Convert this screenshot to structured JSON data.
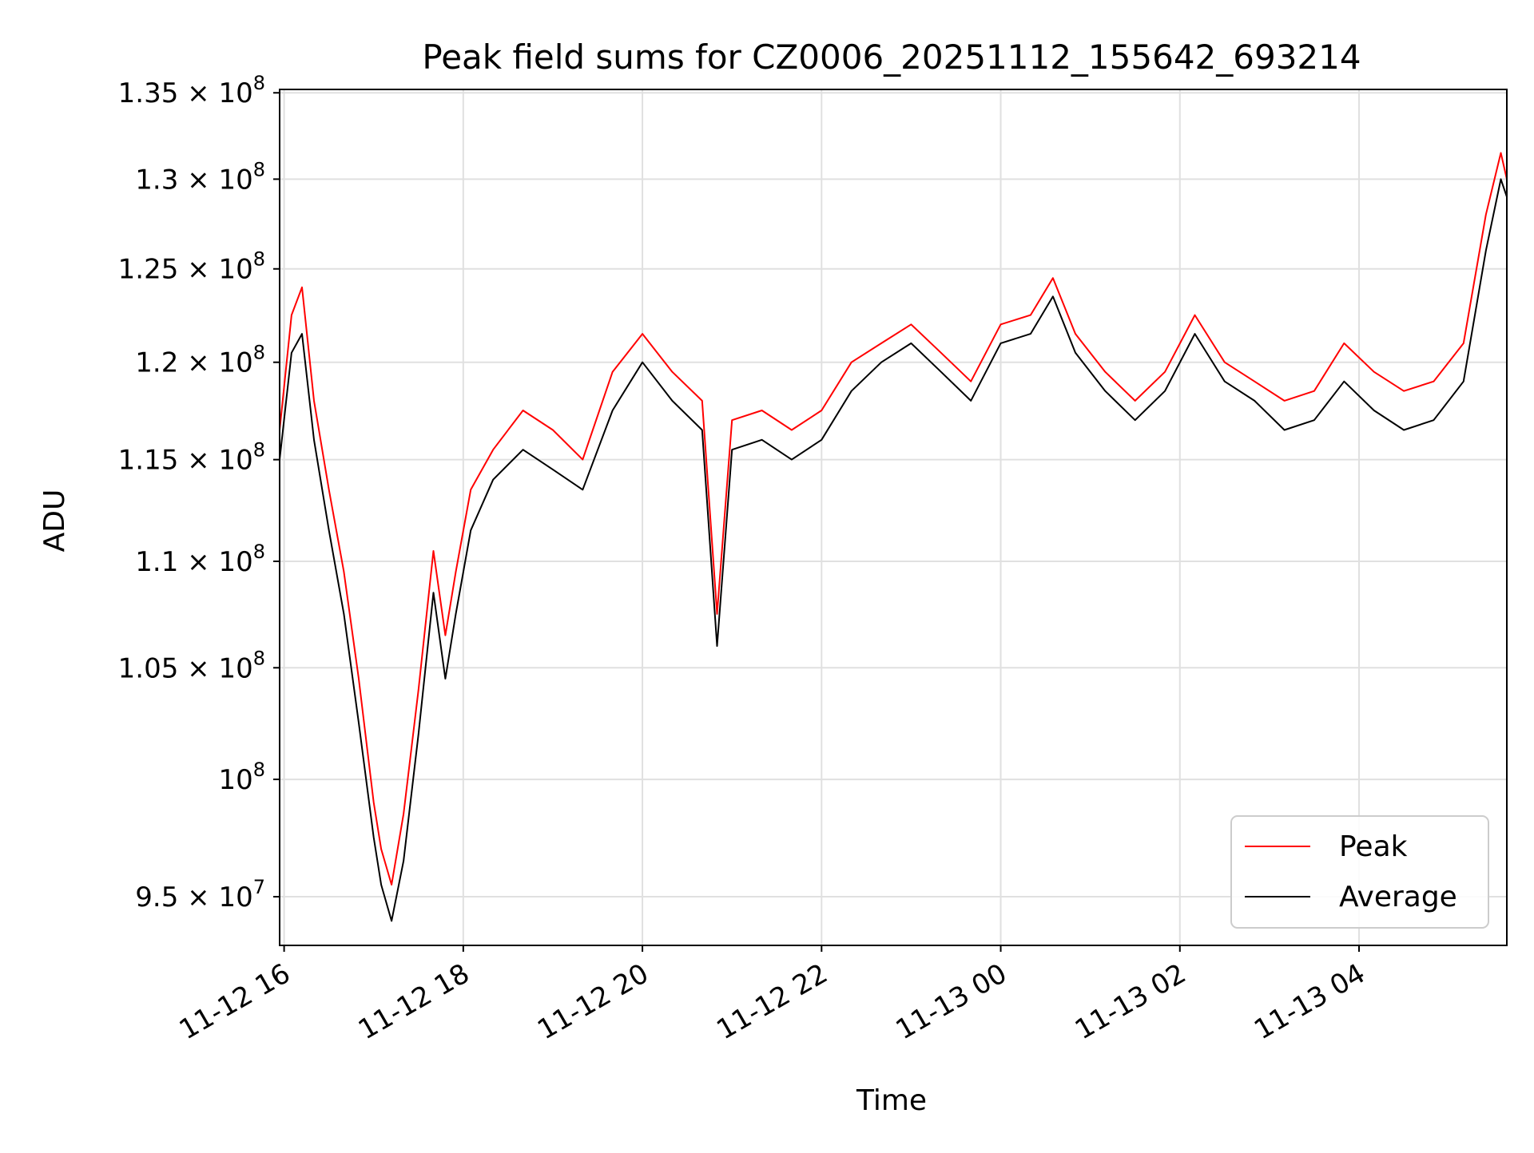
{
  "chart_data": {
    "type": "line",
    "title": "Peak field sums for CZ0006_20251112_155642_693214",
    "xlabel": "Time",
    "ylabel": "ADU",
    "yscale": "log",
    "ylim": [
      93000000,
      135200000
    ],
    "xlim": [
      "2025-11-12T15:57:00",
      "2025-11-13T05:39:00"
    ],
    "grid": true,
    "legend_position": "lower-right",
    "x_ticks": [
      {
        "t": "2025-11-12T16:00:00",
        "label": "11-12 16"
      },
      {
        "t": "2025-11-12T18:00:00",
        "label": "11-12 18"
      },
      {
        "t": "2025-11-12T20:00:00",
        "label": "11-12 20"
      },
      {
        "t": "2025-11-12T22:00:00",
        "label": "11-12 22"
      },
      {
        "t": "2025-11-13T00:00:00",
        "label": "11-13 00"
      },
      {
        "t": "2025-11-13T02:00:00",
        "label": "11-13 02"
      },
      {
        "t": "2025-11-13T04:00:00",
        "label": "11-13 04"
      }
    ],
    "y_ticks": [
      {
        "v": 95000000,
        "mant": "9.5",
        "exp": "7"
      },
      {
        "v": 100000000,
        "mant": "",
        "exp": "8"
      },
      {
        "v": 105000000,
        "mant": "1.05",
        "exp": "8"
      },
      {
        "v": 110000000,
        "mant": "1.1",
        "exp": "8"
      },
      {
        "v": 115000000,
        "mant": "1.15",
        "exp": "8"
      },
      {
        "v": 120000000,
        "mant": "1.2",
        "exp": "8"
      },
      {
        "v": 125000000,
        "mant": "1.25",
        "exp": "8"
      },
      {
        "v": 130000000,
        "mant": "1.3",
        "exp": "8"
      },
      {
        "v": 135000000,
        "mant": "1.35",
        "exp": "8"
      }
    ],
    "series": [
      {
        "name": "Peak",
        "color": "#ff0000",
        "points": [
          [
            "2025-11-12T15:57:00",
            116500000
          ],
          [
            "2025-11-12T16:05:00",
            122500000
          ],
          [
            "2025-11-12T16:12:00",
            124000000
          ],
          [
            "2025-11-12T16:20:00",
            118000000
          ],
          [
            "2025-11-12T16:30:00",
            113500000
          ],
          [
            "2025-11-12T16:40:00",
            109500000
          ],
          [
            "2025-11-12T16:50:00",
            104500000
          ],
          [
            "2025-11-12T17:00:00",
            99000000
          ],
          [
            "2025-11-12T17:05:00",
            97000000
          ],
          [
            "2025-11-12T17:12:00",
            95500000
          ],
          [
            "2025-11-12T17:20:00",
            98500000
          ],
          [
            "2025-11-12T17:30:00",
            104000000
          ],
          [
            "2025-11-12T17:40:00",
            110500000
          ],
          [
            "2025-11-12T17:48:00",
            106500000
          ],
          [
            "2025-11-12T17:55:00",
            109500000
          ],
          [
            "2025-11-12T18:05:00",
            113500000
          ],
          [
            "2025-11-12T18:20:00",
            115500000
          ],
          [
            "2025-11-12T18:40:00",
            117500000
          ],
          [
            "2025-11-12T19:00:00",
            116500000
          ],
          [
            "2025-11-12T19:20:00",
            115000000
          ],
          [
            "2025-11-12T19:40:00",
            119500000
          ],
          [
            "2025-11-12T20:00:00",
            121500000
          ],
          [
            "2025-11-12T20:20:00",
            119500000
          ],
          [
            "2025-11-12T20:40:00",
            118000000
          ],
          [
            "2025-11-12T20:50:00",
            107500000
          ],
          [
            "2025-11-12T21:00:00",
            117000000
          ],
          [
            "2025-11-12T21:20:00",
            117500000
          ],
          [
            "2025-11-12T21:40:00",
            116500000
          ],
          [
            "2025-11-12T22:00:00",
            117500000
          ],
          [
            "2025-11-12T22:20:00",
            120000000
          ],
          [
            "2025-11-12T22:40:00",
            121000000
          ],
          [
            "2025-11-12T23:00:00",
            122000000
          ],
          [
            "2025-11-12T23:20:00",
            120500000
          ],
          [
            "2025-11-12T23:40:00",
            119000000
          ],
          [
            "2025-11-13T00:00:00",
            122000000
          ],
          [
            "2025-11-13T00:20:00",
            122500000
          ],
          [
            "2025-11-13T00:35:00",
            124500000
          ],
          [
            "2025-11-13T00:50:00",
            121500000
          ],
          [
            "2025-11-13T01:10:00",
            119500000
          ],
          [
            "2025-11-13T01:30:00",
            118000000
          ],
          [
            "2025-11-13T01:50:00",
            119500000
          ],
          [
            "2025-11-13T02:10:00",
            122500000
          ],
          [
            "2025-11-13T02:30:00",
            120000000
          ],
          [
            "2025-11-13T02:50:00",
            119000000
          ],
          [
            "2025-11-13T03:10:00",
            118000000
          ],
          [
            "2025-11-13T03:30:00",
            118500000
          ],
          [
            "2025-11-13T03:50:00",
            121000000
          ],
          [
            "2025-11-13T04:10:00",
            119500000
          ],
          [
            "2025-11-13T04:30:00",
            118500000
          ],
          [
            "2025-11-13T04:50:00",
            119000000
          ],
          [
            "2025-11-13T05:10:00",
            121000000
          ],
          [
            "2025-11-13T05:25:00",
            128000000
          ],
          [
            "2025-11-13T05:35:00",
            131500000
          ],
          [
            "2025-11-13T05:39:00",
            130000000
          ]
        ]
      },
      {
        "name": "Average",
        "color": "#000000",
        "points": [
          [
            "2025-11-12T15:57:00",
            115000000
          ],
          [
            "2025-11-12T16:05:00",
            120500000
          ],
          [
            "2025-11-12T16:12:00",
            121500000
          ],
          [
            "2025-11-12T16:20:00",
            116000000
          ],
          [
            "2025-11-12T16:30:00",
            111500000
          ],
          [
            "2025-11-12T16:40:00",
            107500000
          ],
          [
            "2025-11-12T16:50:00",
            102500000
          ],
          [
            "2025-11-12T17:00:00",
            97500000
          ],
          [
            "2025-11-12T17:05:00",
            95500000
          ],
          [
            "2025-11-12T17:12:00",
            94000000
          ],
          [
            "2025-11-12T17:20:00",
            96500000
          ],
          [
            "2025-11-12T17:30:00",
            102000000
          ],
          [
            "2025-11-12T17:40:00",
            108500000
          ],
          [
            "2025-11-12T17:48:00",
            104500000
          ],
          [
            "2025-11-12T17:55:00",
            107500000
          ],
          [
            "2025-11-12T18:05:00",
            111500000
          ],
          [
            "2025-11-12T18:20:00",
            114000000
          ],
          [
            "2025-11-12T18:40:00",
            115500000
          ],
          [
            "2025-11-12T19:00:00",
            114500000
          ],
          [
            "2025-11-12T19:20:00",
            113500000
          ],
          [
            "2025-11-12T19:40:00",
            117500000
          ],
          [
            "2025-11-12T20:00:00",
            120000000
          ],
          [
            "2025-11-12T20:20:00",
            118000000
          ],
          [
            "2025-11-12T20:40:00",
            116500000
          ],
          [
            "2025-11-12T20:50:00",
            106000000
          ],
          [
            "2025-11-12T21:00:00",
            115500000
          ],
          [
            "2025-11-12T21:20:00",
            116000000
          ],
          [
            "2025-11-12T21:40:00",
            115000000
          ],
          [
            "2025-11-12T22:00:00",
            116000000
          ],
          [
            "2025-11-12T22:20:00",
            118500000
          ],
          [
            "2025-11-12T22:40:00",
            120000000
          ],
          [
            "2025-11-12T23:00:00",
            121000000
          ],
          [
            "2025-11-12T23:20:00",
            119500000
          ],
          [
            "2025-11-12T23:40:00",
            118000000
          ],
          [
            "2025-11-13T00:00:00",
            121000000
          ],
          [
            "2025-11-13T00:20:00",
            121500000
          ],
          [
            "2025-11-13T00:35:00",
            123500000
          ],
          [
            "2025-11-13T00:50:00",
            120500000
          ],
          [
            "2025-11-13T01:10:00",
            118500000
          ],
          [
            "2025-11-13T01:30:00",
            117000000
          ],
          [
            "2025-11-13T01:50:00",
            118500000
          ],
          [
            "2025-11-13T02:10:00",
            121500000
          ],
          [
            "2025-11-13T02:30:00",
            119000000
          ],
          [
            "2025-11-13T02:50:00",
            118000000
          ],
          [
            "2025-11-13T03:10:00",
            116500000
          ],
          [
            "2025-11-13T03:30:00",
            117000000
          ],
          [
            "2025-11-13T03:50:00",
            119000000
          ],
          [
            "2025-11-13T04:10:00",
            117500000
          ],
          [
            "2025-11-13T04:30:00",
            116500000
          ],
          [
            "2025-11-13T04:50:00",
            117000000
          ],
          [
            "2025-11-13T05:10:00",
            119000000
          ],
          [
            "2025-11-13T05:25:00",
            126000000
          ],
          [
            "2025-11-13T05:35:00",
            130000000
          ],
          [
            "2025-11-13T05:39:00",
            129000000
          ]
        ]
      }
    ],
    "legend": [
      {
        "label": "Peak",
        "color": "#ff0000"
      },
      {
        "label": "Average",
        "color": "#000000"
      }
    ]
  }
}
